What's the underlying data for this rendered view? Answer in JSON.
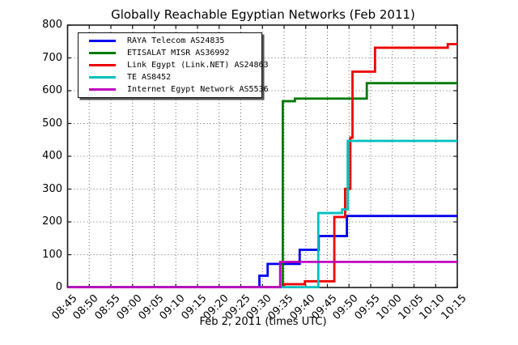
{
  "chart_data": {
    "type": "line",
    "step_interpolation": "post",
    "title": "Globally Reachable Egyptian Networks (Feb 2011)",
    "xlabel": "Feb 2, 2011 (times UTC)",
    "ylabel": "",
    "grid": "dotted",
    "legend_position": "upper-left",
    "ylim": [
      0,
      800
    ],
    "y_ticks": [
      0,
      100,
      200,
      300,
      400,
      500,
      600,
      700,
      800
    ],
    "x_axis_minutes_range": [
      0,
      90
    ],
    "x_ticks": [
      {
        "minute": 0,
        "label": "08:45"
      },
      {
        "minute": 5,
        "label": "08:50"
      },
      {
        "minute": 10,
        "label": "08:55"
      },
      {
        "minute": 15,
        "label": "09:00"
      },
      {
        "minute": 20,
        "label": "09:05"
      },
      {
        "minute": 25,
        "label": "09:10"
      },
      {
        "minute": 30,
        "label": "09:15"
      },
      {
        "minute": 35,
        "label": "09:20"
      },
      {
        "minute": 40,
        "label": "09:25"
      },
      {
        "minute": 45,
        "label": "09:30"
      },
      {
        "minute": 50,
        "label": "09:35"
      },
      {
        "minute": 55,
        "label": "09:40"
      },
      {
        "minute": 60,
        "label": "09:45"
      },
      {
        "minute": 65,
        "label": "09:50"
      },
      {
        "minute": 70,
        "label": "09:55"
      },
      {
        "minute": 75,
        "label": "10:00"
      },
      {
        "minute": 80,
        "label": "10:05"
      },
      {
        "minute": 85,
        "label": "10:10"
      },
      {
        "minute": 90,
        "label": "10:15"
      }
    ],
    "series": [
      {
        "name": "RAYA Telecom AS24835",
        "color": "#0000ee",
        "points": [
          [
            0,
            1
          ],
          [
            44.3,
            36
          ],
          [
            46.2,
            72
          ],
          [
            53.6,
            115
          ],
          [
            58,
            157
          ],
          [
            64.5,
            218
          ],
          [
            90,
            218
          ]
        ]
      },
      {
        "name": "ETISALAT MISR AS36992",
        "color": "#007a00",
        "points": [
          [
            0,
            1
          ],
          [
            49.7,
            568
          ],
          [
            52.5,
            576
          ],
          [
            69.1,
            623
          ],
          [
            90,
            623
          ]
        ]
      },
      {
        "name": "Link Egypt (Link.NET) AS24863",
        "color": "#ee0000",
        "points": [
          [
            0,
            1
          ],
          [
            50,
            10
          ],
          [
            54.8,
            19
          ],
          [
            61.6,
            215
          ],
          [
            64.1,
            301
          ],
          [
            65.3,
            457
          ],
          [
            65.8,
            658
          ],
          [
            71,
            731
          ],
          [
            87.8,
            742
          ],
          [
            90,
            742
          ]
        ]
      },
      {
        "name": "TE AS8452",
        "color": "#00bfbf",
        "points": [
          [
            0,
            1
          ],
          [
            57.9,
            227
          ],
          [
            63.4,
            238
          ],
          [
            64.7,
            447
          ],
          [
            90,
            447
          ]
        ]
      },
      {
        "name": "Internet Egypt Network AS5536",
        "color": "#bf00bf",
        "points": [
          [
            0,
            1
          ],
          [
            49.1,
            78
          ],
          [
            90,
            78
          ]
        ]
      }
    ]
  }
}
